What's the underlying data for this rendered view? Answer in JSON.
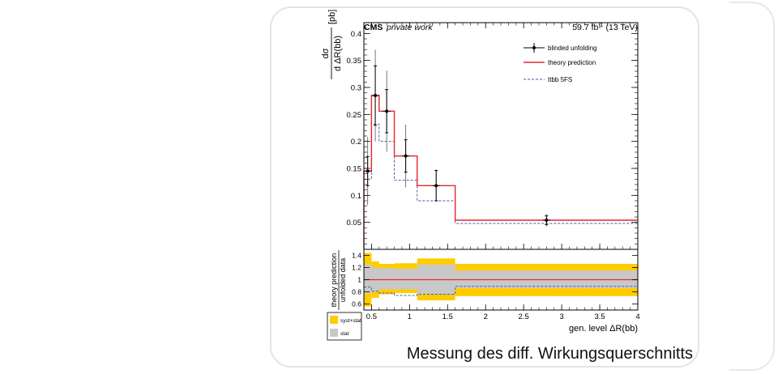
{
  "slide": {
    "caption": "Messung des diff. Wirkungsquerschnitts"
  },
  "chart_data": [
    {
      "type": "line",
      "header": {
        "experiment": "CMS",
        "experiment_note": "private work",
        "luminosity": "59.7 fb",
        "luminosity_exponent": "-1",
        "energy": "(13 TeV)"
      },
      "ylabel": {
        "numerator": "dσ",
        "denominator": "d ΔR(bb)",
        "unit": "[pb]"
      },
      "bin_edges": [
        0.4,
        0.5,
        0.6,
        0.8,
        1.1,
        1.6,
        4.0
      ],
      "xlim": [
        0.4,
        4.0
      ],
      "ylim": [
        0.0,
        0.42
      ],
      "yticks": [
        "0.05",
        "0.1",
        "0.15",
        "0.2",
        "0.25",
        "0.3",
        "0.35",
        "0.4"
      ],
      "legend_position": "top-right",
      "colors": {
        "theory": "#e8262b",
        "ttbb": "#4a5aa8",
        "data": "#000000"
      },
      "series": [
        {
          "name": "blinded unfolding",
          "x": [
            0.45,
            0.55,
            0.7,
            0.95,
            1.35,
            2.8
          ],
          "values": [
            0.145,
            0.285,
            0.256,
            0.173,
            0.118,
            0.054
          ],
          "stat_err": [
            0.027,
            0.055,
            0.04,
            0.03,
            0.028,
            0.008
          ],
          "total_err": [
            0.063,
            0.085,
            0.075,
            0.058,
            0.03,
            0.012
          ]
        },
        {
          "name": "theory prediction",
          "values": [
            0.145,
            0.285,
            0.256,
            0.173,
            0.118,
            0.054
          ]
        },
        {
          "name": "ttbb 5FS",
          "values": [
            0.13,
            0.232,
            0.2,
            0.128,
            0.09,
            0.048
          ]
        }
      ]
    },
    {
      "type": "area",
      "ylabel": {
        "numerator": "theory prediction",
        "denominator": "unfolded data"
      },
      "xlabel": "gen. level ΔR(bb)",
      "xlim": [
        0.4,
        4.0
      ],
      "ylim": [
        0.5,
        1.5
      ],
      "xticks": [
        "0.5",
        "1",
        "1.5",
        "2",
        "2.5",
        "3",
        "3.5",
        "4"
      ],
      "yticks": [
        "0.6",
        "0.8",
        "1",
        "1.2",
        "1.4"
      ],
      "colors": {
        "syst_stat": "#ffcc00",
        "stat": "#c8c8c8",
        "theory": "#e8262b",
        "ttbb": "#4a5aa8"
      },
      "bin_edges": [
        0.4,
        0.5,
        0.6,
        0.8,
        1.1,
        1.6,
        4.0
      ],
      "series": [
        {
          "name": "syst+stat",
          "lower": [
            0.56,
            0.7,
            0.76,
            0.78,
            0.66,
            0.73
          ],
          "upper": [
            1.44,
            1.3,
            1.26,
            1.27,
            1.35,
            1.26
          ]
        },
        {
          "name": "stat",
          "lower": [
            0.77,
            0.8,
            0.84,
            0.84,
            0.76,
            0.86
          ],
          "upper": [
            1.25,
            1.2,
            1.19,
            1.18,
            1.25,
            1.15
          ]
        },
        {
          "name": "theory prediction",
          "values": [
            1.0,
            1.0,
            1.0,
            1.0,
            1.0,
            1.0
          ]
        },
        {
          "name": "ttbb 5FS",
          "values": [
            0.88,
            0.81,
            0.78,
            0.74,
            0.76,
            0.89
          ]
        }
      ],
      "legend": [
        "syst+stat",
        "stat"
      ]
    }
  ]
}
